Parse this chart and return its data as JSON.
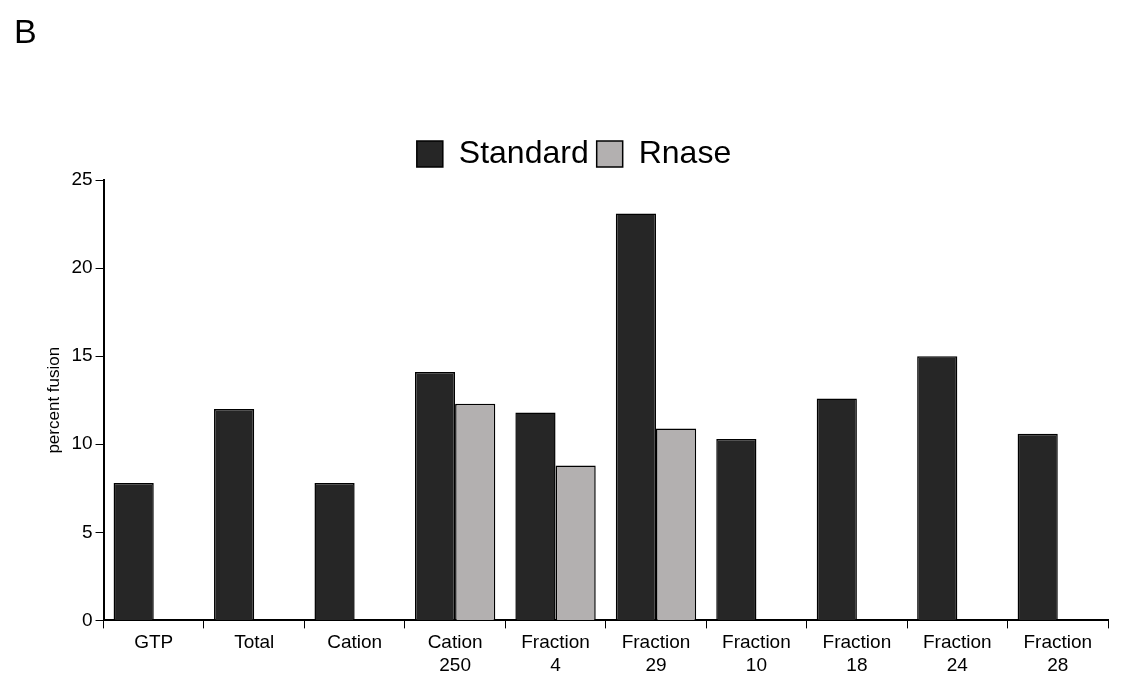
{
  "chart_data": {
    "type": "bar",
    "ylabel": "percent fusion",
    "categories": [
      "GTP",
      "Total",
      "Cation",
      "Cation 250",
      "Fraction 4",
      "Fraction 29",
      "Fraction 10",
      "Fraction 18",
      "Fraction 24",
      "Fraction 28"
    ],
    "series": [
      {
        "name": "Standard",
        "color": "#262626",
        "values": [
          7.8,
          12.0,
          7.8,
          14.1,
          11.8,
          23.1,
          10.3,
          12.6,
          15.0,
          10.6
        ]
      },
      {
        "name": "Rnase",
        "color": "#b3b0b0",
        "values": [
          null,
          null,
          null,
          12.3,
          8.8,
          10.9,
          null,
          null,
          null,
          null
        ]
      }
    ],
    "ylim": [
      0,
      25
    ],
    "yticks": [
      0,
      5,
      10,
      15,
      20,
      25
    ],
    "grid": false,
    "legend": "top",
    "annotations": [
      "B"
    ]
  }
}
